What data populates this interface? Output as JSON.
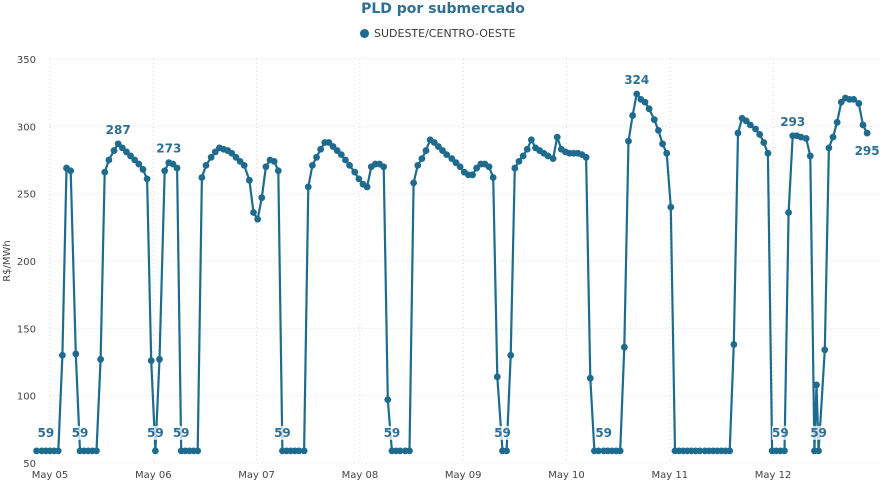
{
  "chart_data": {
    "type": "line",
    "title": "PLD por submercado",
    "ylabel": "R$/MWh",
    "xlabel": "",
    "ylim": [
      50,
      350
    ],
    "yticks": [
      50,
      100,
      150,
      200,
      250,
      300,
      350
    ],
    "grid": true,
    "legend_position": "top-center",
    "x_tick_labels": [
      "May 05",
      "May 06",
      "May 07",
      "May 08",
      "May 09",
      "May 10",
      "May 11",
      "May 12"
    ],
    "x_range_days": [
      0,
      8.13
    ],
    "series": [
      {
        "name": "SUDESTE/CENTRO-OESTE",
        "color": "#1f6b8e",
        "points": [
          [
            -0.13,
            59
          ],
          [
            -0.08,
            59
          ],
          [
            -0.04,
            59
          ],
          [
            0.0,
            59
          ],
          [
            0.04,
            59
          ],
          [
            0.08,
            59
          ],
          [
            0.12,
            130
          ],
          [
            0.16,
            269
          ],
          [
            0.2,
            267
          ],
          [
            0.25,
            131
          ],
          [
            0.29,
            59
          ],
          [
            0.33,
            59
          ],
          [
            0.37,
            59
          ],
          [
            0.41,
            59
          ],
          [
            0.45,
            59
          ],
          [
            0.49,
            127
          ],
          [
            0.53,
            266
          ],
          [
            0.57,
            275
          ],
          [
            0.62,
            282
          ],
          [
            0.66,
            287
          ],
          [
            0.7,
            284
          ],
          [
            0.74,
            281
          ],
          [
            0.78,
            278
          ],
          [
            0.82,
            275
          ],
          [
            0.86,
            272
          ],
          [
            0.9,
            268
          ],
          [
            0.94,
            261
          ],
          [
            0.98,
            126
          ],
          [
            1.02,
            59
          ],
          [
            1.06,
            127
          ],
          [
            1.11,
            267
          ],
          [
            1.15,
            273
          ],
          [
            1.19,
            272
          ],
          [
            1.23,
            269
          ],
          [
            1.27,
            59
          ],
          [
            1.31,
            59
          ],
          [
            1.35,
            59
          ],
          [
            1.39,
            59
          ],
          [
            1.43,
            59
          ],
          [
            1.47,
            262
          ],
          [
            1.51,
            271
          ],
          [
            1.56,
            277
          ],
          [
            1.6,
            281
          ],
          [
            1.64,
            284
          ],
          [
            1.68,
            283
          ],
          [
            1.72,
            282
          ],
          [
            1.76,
            280
          ],
          [
            1.8,
            277
          ],
          [
            1.84,
            274
          ],
          [
            1.88,
            271
          ],
          [
            1.93,
            260
          ],
          [
            1.97,
            236
          ],
          [
            2.01,
            231
          ],
          [
            2.05,
            247
          ],
          [
            2.09,
            270
          ],
          [
            2.13,
            275
          ],
          [
            2.17,
            274
          ],
          [
            2.21,
            267
          ],
          [
            2.25,
            59
          ],
          [
            2.29,
            59
          ],
          [
            2.33,
            59
          ],
          [
            2.37,
            59
          ],
          [
            2.41,
            59
          ],
          [
            2.46,
            59
          ],
          [
            2.5,
            255
          ],
          [
            2.54,
            271
          ],
          [
            2.58,
            277
          ],
          [
            2.62,
            283
          ],
          [
            2.66,
            288
          ],
          [
            2.7,
            288
          ],
          [
            2.74,
            285
          ],
          [
            2.78,
            282
          ],
          [
            2.82,
            279
          ],
          [
            2.86,
            275
          ],
          [
            2.9,
            271
          ],
          [
            2.95,
            266
          ],
          [
            2.99,
            261
          ],
          [
            3.03,
            257
          ],
          [
            3.07,
            255
          ],
          [
            3.11,
            270
          ],
          [
            3.15,
            272
          ],
          [
            3.19,
            272
          ],
          [
            3.23,
            270
          ],
          [
            3.27,
            97
          ],
          [
            3.31,
            59
          ],
          [
            3.35,
            59
          ],
          [
            3.39,
            59
          ],
          [
            3.44,
            59
          ],
          [
            3.48,
            59
          ],
          [
            3.52,
            258
          ],
          [
            3.56,
            271
          ],
          [
            3.6,
            276
          ],
          [
            3.64,
            282
          ],
          [
            3.68,
            290
          ],
          [
            3.72,
            288
          ],
          [
            3.76,
            285
          ],
          [
            3.8,
            282
          ],
          [
            3.84,
            279
          ],
          [
            3.89,
            276
          ],
          [
            3.93,
            273
          ],
          [
            3.97,
            270
          ],
          [
            4.01,
            266
          ],
          [
            4.05,
            264
          ],
          [
            4.09,
            264
          ],
          [
            4.13,
            269
          ],
          [
            4.17,
            272
          ],
          [
            4.21,
            272
          ],
          [
            4.25,
            270
          ],
          [
            4.29,
            262
          ],
          [
            4.33,
            114
          ],
          [
            4.38,
            59
          ],
          [
            4.42,
            59
          ],
          [
            4.46,
            130
          ],
          [
            4.5,
            269
          ],
          [
            4.54,
            274
          ],
          [
            4.58,
            278
          ],
          [
            4.62,
            283
          ],
          [
            4.66,
            290
          ],
          [
            4.7,
            284
          ],
          [
            4.74,
            282
          ],
          [
            4.78,
            280
          ],
          [
            4.82,
            278
          ],
          [
            4.87,
            276
          ],
          [
            4.91,
            292
          ],
          [
            4.95,
            283
          ],
          [
            4.99,
            281
          ],
          [
            5.03,
            280
          ],
          [
            5.07,
            280
          ],
          [
            5.11,
            280
          ],
          [
            5.15,
            279
          ],
          [
            5.19,
            277
          ],
          [
            5.23,
            113
          ],
          [
            5.27,
            59
          ],
          [
            5.31,
            59
          ],
          [
            5.36,
            59
          ],
          [
            5.4,
            59
          ],
          [
            5.44,
            59
          ],
          [
            5.48,
            59
          ],
          [
            5.52,
            59
          ],
          [
            5.56,
            136
          ],
          [
            5.6,
            289
          ],
          [
            5.64,
            308
          ],
          [
            5.68,
            324
          ],
          [
            5.72,
            320
          ],
          [
            5.76,
            318
          ],
          [
            5.8,
            313
          ],
          [
            5.85,
            305
          ],
          [
            5.89,
            297
          ],
          [
            5.93,
            287
          ],
          [
            5.97,
            280
          ],
          [
            6.01,
            240
          ],
          [
            6.05,
            59
          ],
          [
            6.09,
            59
          ],
          [
            6.13,
            59
          ],
          [
            6.17,
            59
          ],
          [
            6.21,
            59
          ],
          [
            6.25,
            59
          ],
          [
            6.29,
            59
          ],
          [
            6.34,
            59
          ],
          [
            6.38,
            59
          ],
          [
            6.42,
            59
          ],
          [
            6.46,
            59
          ],
          [
            6.5,
            59
          ],
          [
            6.54,
            59
          ],
          [
            6.58,
            59
          ],
          [
            6.62,
            138
          ],
          [
            6.66,
            295
          ],
          [
            6.7,
            306
          ],
          [
            6.74,
            304
          ],
          [
            6.78,
            301
          ],
          [
            6.83,
            298
          ],
          [
            6.87,
            294
          ],
          [
            6.91,
            288
          ],
          [
            6.95,
            280
          ],
          [
            6.99,
            59
          ],
          [
            7.03,
            59
          ],
          [
            7.07,
            59
          ],
          [
            7.11,
            59
          ],
          [
            7.15,
            236
          ],
          [
            7.19,
            293
          ],
          [
            7.23,
            293
          ],
          [
            7.27,
            292
          ],
          [
            7.32,
            291
          ],
          [
            7.36,
            278
          ],
          [
            7.4,
            59
          ],
          [
            7.42,
            108
          ],
          [
            7.44,
            59
          ],
          [
            7.5,
            134
          ],
          [
            7.54,
            284
          ],
          [
            7.58,
            292
          ],
          [
            7.62,
            303
          ],
          [
            7.66,
            318
          ],
          [
            7.7,
            321
          ],
          [
            7.74,
            320
          ],
          [
            7.78,
            320
          ],
          [
            7.83,
            317
          ],
          [
            7.87,
            301
          ],
          [
            7.91,
            295
          ]
        ],
        "data_labels": [
          {
            "x": -0.04,
            "y": 59,
            "text": "59"
          },
          {
            "x": 0.29,
            "y": 59,
            "text": "59"
          },
          {
            "x": 0.66,
            "y": 287,
            "text": "287"
          },
          {
            "x": 1.02,
            "y": 59,
            "text": "59"
          },
          {
            "x": 1.15,
            "y": 273,
            "text": "273"
          },
          {
            "x": 1.27,
            "y": 59,
            "text": "59"
          },
          {
            "x": 2.25,
            "y": 59,
            "text": "59"
          },
          {
            "x": 3.31,
            "y": 59,
            "text": "59"
          },
          {
            "x": 4.38,
            "y": 59,
            "text": "59"
          },
          {
            "x": 5.36,
            "y": 59,
            "text": "59"
          },
          {
            "x": 5.68,
            "y": 324,
            "text": "324"
          },
          {
            "x": 7.07,
            "y": 59,
            "text": "59"
          },
          {
            "x": 7.19,
            "y": 293,
            "text": "293"
          },
          {
            "x": 7.44,
            "y": 59,
            "text": "59"
          },
          {
            "x": 7.91,
            "y": 295,
            "text": "295"
          }
        ]
      }
    ]
  }
}
